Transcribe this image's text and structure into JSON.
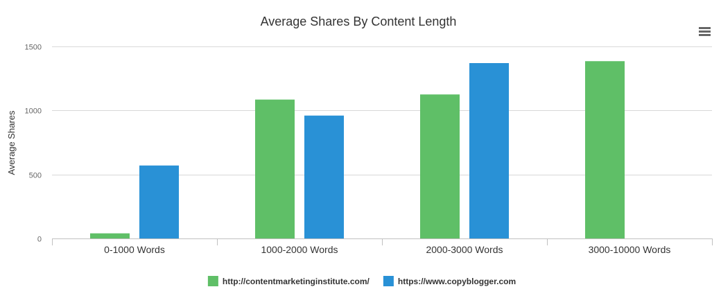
{
  "chart_data": {
    "type": "bar",
    "title": "Average Shares By Content Length",
    "ylabel": "Average Shares",
    "xlabel": "",
    "categories": [
      "0-1000 Words",
      "1000-2000 Words",
      "2000-3000 Words",
      "3000-10000 Words"
    ],
    "series": [
      {
        "name": "http://contentmarketinginstitute.com/",
        "color": "#5fbf67",
        "values": [
          40,
          1085,
          1125,
          1385
        ]
      },
      {
        "name": "https://www.copyblogger.com",
        "color": "#2991d6",
        "values": [
          570,
          960,
          1370,
          null
        ]
      }
    ],
    "ylim": [
      0,
      1500
    ],
    "yticks": [
      0,
      500,
      1000,
      1500
    ],
    "grid": true,
    "legend_position": "bottom-center"
  },
  "menu_icon": "hamburger-menu-icon"
}
